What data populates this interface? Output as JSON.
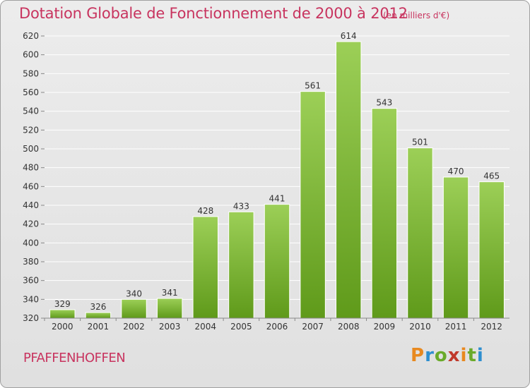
{
  "header": {
    "title": "Dotation Globale de Fonctionnement de 2000 à 2012",
    "subtitle": "(en milliers d'€)"
  },
  "footer": {
    "place": "PFAFFENHOFFEN",
    "logo_letters": [
      "P",
      "r",
      "o",
      "x",
      "i",
      "t",
      "i"
    ],
    "logo_colors": [
      "#e8891f",
      "#2e8fcf",
      "#6aaa2a",
      "#c0392b",
      "#e8891f",
      "#6aaa2a",
      "#2e8fcf"
    ]
  },
  "colors": {
    "accent": "#c8345f",
    "bar_top": "#9ccf57",
    "bar_bottom": "#5f9a1a",
    "grid": "#ffffff"
  },
  "chart_data": {
    "type": "bar",
    "categories": [
      "2000",
      "2001",
      "2002",
      "2003",
      "2004",
      "2005",
      "2006",
      "2007",
      "2008",
      "2009",
      "2010",
      "2011",
      "2012"
    ],
    "values": [
      329,
      326,
      340,
      341,
      428,
      433,
      441,
      561,
      614,
      543,
      501,
      470,
      465
    ],
    "data_labels": [
      "329",
      "326",
      "340",
      "341",
      "428",
      "433",
      "441",
      "561",
      "614",
      "543",
      "501",
      "470",
      "465"
    ],
    "title": "Dotation Globale de Fonctionnement de 2000 à 2012",
    "subtitle": "(en milliers d'€)",
    "ylim": [
      320,
      620
    ],
    "yticks": [
      320,
      340,
      360,
      380,
      400,
      420,
      440,
      460,
      480,
      500,
      520,
      540,
      560,
      580,
      600,
      620
    ],
    "grid": true,
    "legend": "none"
  }
}
